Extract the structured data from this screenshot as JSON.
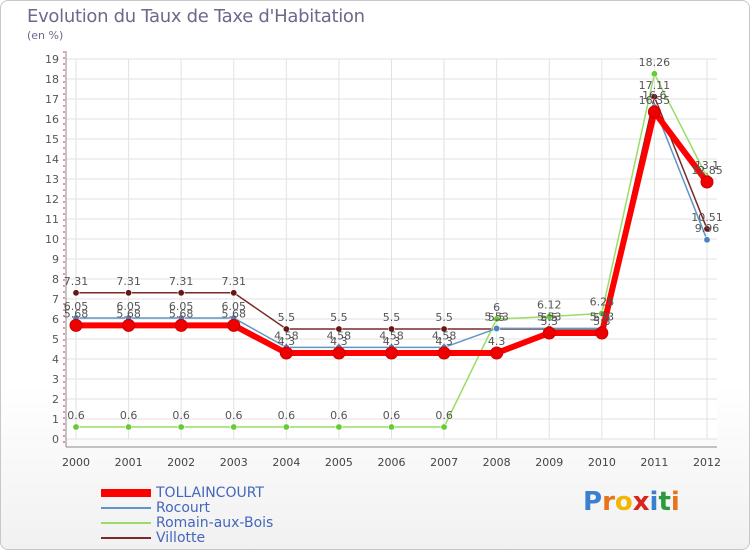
{
  "title": "Evolution du Taux de Taxe d'Habitation",
  "unit": "(en %)",
  "logo": {
    "text": "Proxiti",
    "colors": [
      "#3a7fd0",
      "#e8731a",
      "#f2b700",
      "#d8261c",
      "#3a7fd0",
      "#2a9b3a",
      "#e8731a"
    ]
  },
  "chart_data": {
    "type": "line",
    "title": "Evolution du Taux de Taxe d'Habitation",
    "ylabel": "(en %)",
    "xlabel": "",
    "ylim": [
      0,
      19
    ],
    "yticks": [
      0,
      1,
      2,
      3,
      4,
      5,
      6,
      7,
      8,
      9,
      10,
      11,
      12,
      13,
      14,
      15,
      16,
      17,
      18,
      19
    ],
    "categories": [
      "2000",
      "2001",
      "2002",
      "2003",
      "2004",
      "2005",
      "2006",
      "2007",
      "2008",
      "2009",
      "2010",
      "2011",
      "2012"
    ],
    "grid": true,
    "legend_position": "bottom-left",
    "series": [
      {
        "name": "Villotte",
        "color": "#7a2a2a",
        "marker": "#6a1515",
        "width": 1.5,
        "values": [
          7.31,
          7.31,
          7.31,
          7.31,
          5.5,
          5.5,
          5.5,
          5.5,
          5.5,
          5.5,
          5.5,
          17.11,
          10.51
        ]
      },
      {
        "name": "Romain-aux-Bois",
        "color": "#99dd66",
        "marker": "#66cc33",
        "width": 1.5,
        "values": [
          0.6,
          0.6,
          0.6,
          0.6,
          0.6,
          0.6,
          0.6,
          0.6,
          6,
          6.12,
          6.28,
          18.26,
          13.1
        ]
      },
      {
        "name": "Rocourt",
        "color": "#5f96c8",
        "marker": "#4a82c0",
        "width": 1.5,
        "values": [
          6.05,
          6.05,
          6.05,
          6.05,
          4.58,
          4.58,
          4.58,
          4.58,
          5.53,
          5.53,
          5.53,
          16.6,
          9.96
        ]
      },
      {
        "name": "TOLLAINCOURT",
        "color": "#ff0000",
        "marker": "#ee0000",
        "width": 6,
        "values": [
          5.68,
          5.68,
          5.68,
          5.68,
          4.3,
          4.3,
          4.3,
          4.3,
          4.3,
          5.3,
          5.3,
          16.35,
          12.85
        ]
      }
    ],
    "legend": [
      "TOLLAINCOURT",
      "Rocourt",
      "Romain-aux-Bois",
      "Villotte"
    ]
  }
}
